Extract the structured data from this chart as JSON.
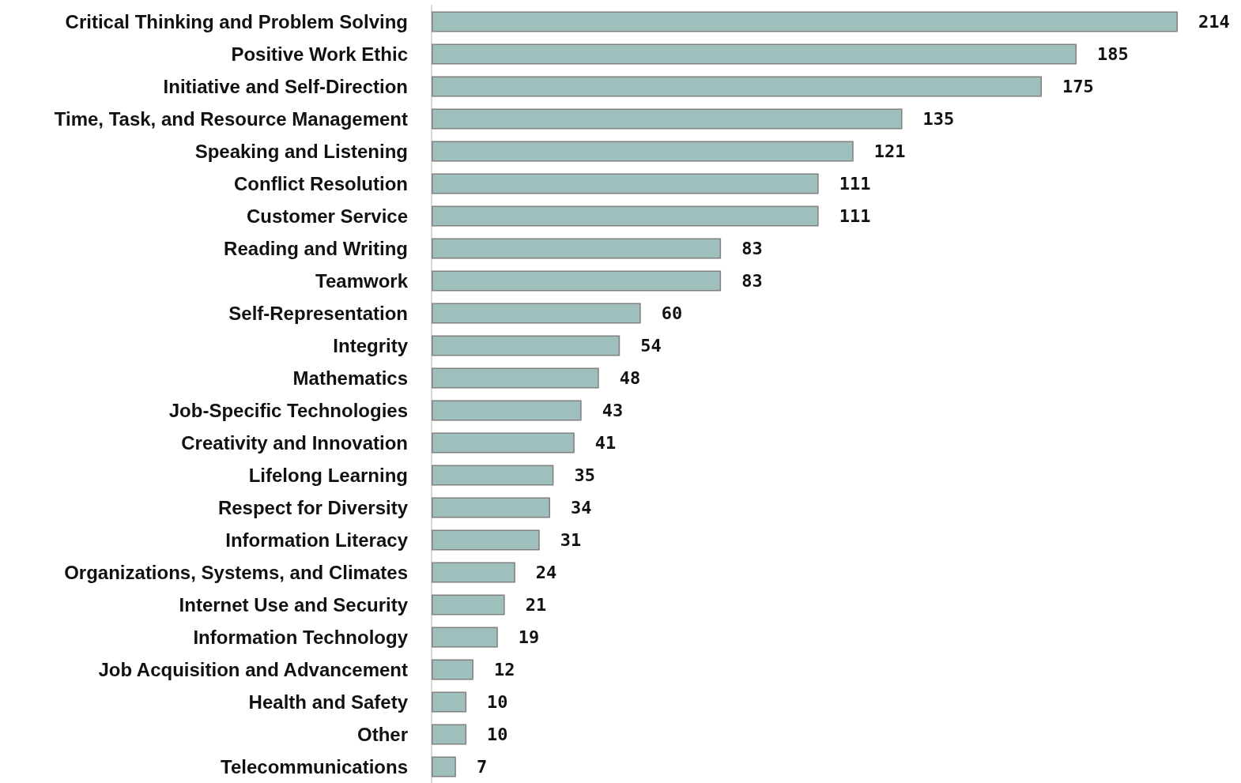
{
  "chart_data": {
    "type": "bar",
    "orientation": "horizontal",
    "data_labels": true,
    "tick_labels": "y",
    "color": "#9fbfbc",
    "categories": [
      "Critical Thinking and Problem Solving",
      "Positive Work Ethic",
      "Initiative and Self-Direction",
      "Time, Task, and Resource Management",
      "Speaking and Listening",
      "Conflict Resolution",
      "Customer Service",
      "Reading and Writing",
      "Teamwork",
      "Self-Representation",
      "Integrity",
      "Mathematics",
      "Job-Specific Technologies",
      "Creativity and Innovation",
      "Lifelong Learning",
      "Respect for Diversity",
      "Information Literacy",
      "Organizations, Systems, and Climates",
      "Internet Use and Security",
      "Information Technology",
      "Job Acquisition and Advancement",
      "Health and Safety",
      "Other",
      "Telecommunications"
    ],
    "values": [
      214,
      185,
      175,
      135,
      121,
      111,
      111,
      83,
      83,
      60,
      54,
      48,
      43,
      41,
      35,
      34,
      31,
      24,
      21,
      19,
      12,
      10,
      10,
      7
    ]
  }
}
